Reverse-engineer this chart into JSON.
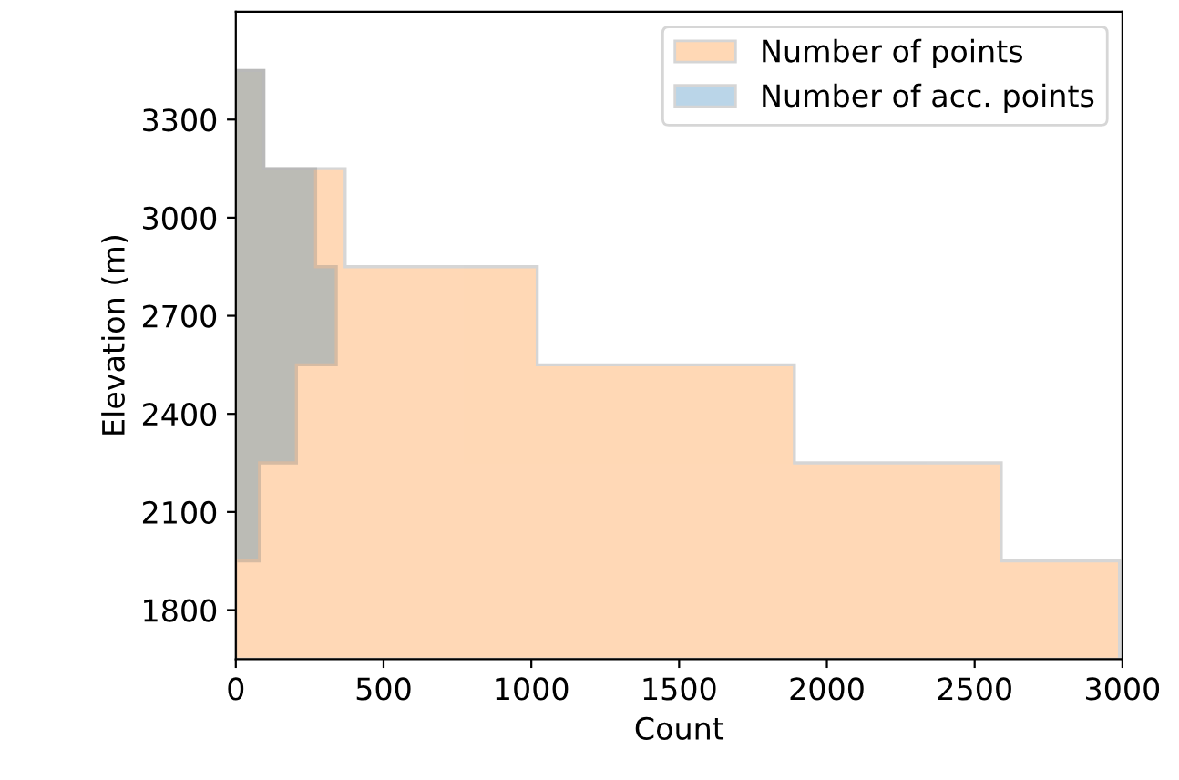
{
  "chart_data": {
    "type": "histogram",
    "orientation": "horizontal",
    "xlabel": "Count",
    "ylabel": "Elevation (m)",
    "bins": [
      1650,
      1950,
      2250,
      2550,
      2850,
      3150,
      3450
    ],
    "series": [
      {
        "name": "Number of points",
        "color": "#ff7f0e",
        "values": [
          2990,
          2590,
          1890,
          1020,
          370,
          95
        ]
      },
      {
        "name": "Number of acc. points",
        "color": "#1f77b4",
        "values": [
          0,
          80,
          205,
          340,
          270,
          95
        ]
      }
    ],
    "xlim": [
      0,
      3000
    ],
    "xticks": [
      0,
      500,
      1000,
      1500,
      2000,
      2500,
      3000
    ],
    "ylim": [
      1650,
      3630
    ],
    "yticks": [
      1800,
      2100,
      2400,
      2700,
      3000,
      3300
    ],
    "legend": "top right",
    "grid": false
  }
}
